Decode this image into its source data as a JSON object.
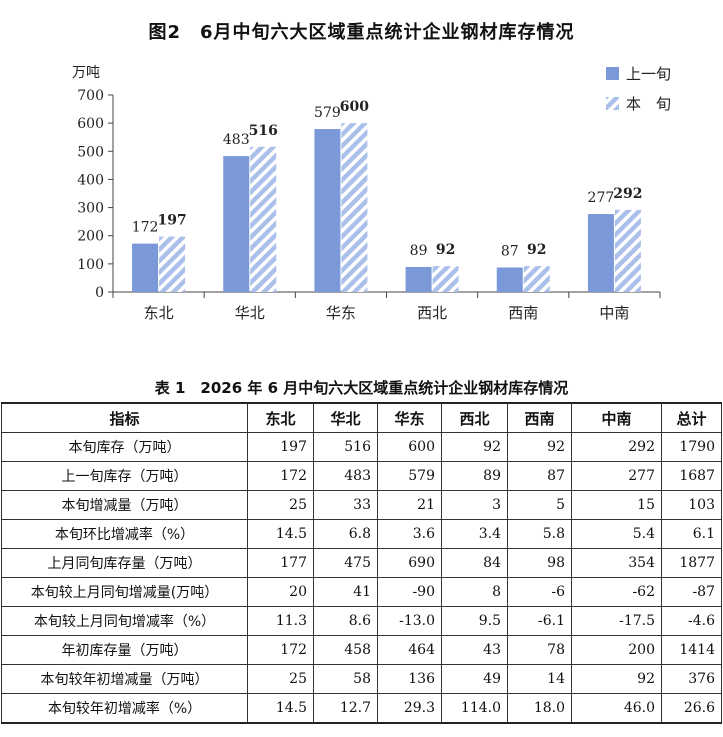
{
  "chart_title": "图2　6月中旬六大区域重点统计企业钢材库存情况",
  "chart_data": {
    "type": "bar",
    "ylabel": "万吨",
    "ylim": [
      0,
      700
    ],
    "yticks": [
      "0",
      "100",
      "200",
      "300",
      "400",
      "500",
      "600",
      "700"
    ],
    "categories": [
      "东北",
      "华北",
      "华东",
      "西北",
      "西南",
      "中南"
    ],
    "series": [
      {
        "name": "上一旬",
        "values": [
          172,
          483,
          579,
          89,
          87,
          277
        ],
        "color": "#7b98d8"
      },
      {
        "name": "本　旬",
        "values": [
          197,
          516,
          600,
          92,
          92,
          292
        ],
        "color": "#aac0ea",
        "pattern": "diagonal-stripes"
      }
    ],
    "legend": "top-right"
  },
  "table_title": "表 1　2026 年 6 月中旬六大区域重点统计企业钢材库存情况",
  "table": {
    "headers": [
      "指标",
      "东北",
      "华北",
      "华东",
      "西北",
      "西南",
      "中南",
      "总计"
    ],
    "rows": [
      [
        "本旬库存（万吨）",
        "197",
        "516",
        "600",
        "92",
        "92",
        "292",
        "1790"
      ],
      [
        "上一旬库存（万吨）",
        "172",
        "483",
        "579",
        "89",
        "87",
        "277",
        "1687"
      ],
      [
        "本旬增减量（万吨）",
        "25",
        "33",
        "21",
        "3",
        "5",
        "15",
        "103"
      ],
      [
        "本旬环比增减率（%）",
        "14.5",
        "6.8",
        "3.6",
        "3.4",
        "5.8",
        "5.4",
        "6.1"
      ],
      [
        "上月同旬库存量（万吨）",
        "177",
        "475",
        "690",
        "84",
        "98",
        "354",
        "1877"
      ],
      [
        "本旬较上月同旬增减量(万吨）",
        "20",
        "41",
        "-90",
        "8",
        "-6",
        "-62",
        "-87"
      ],
      [
        "本旬较上月同旬增减率（%）",
        "11.3",
        "8.6",
        "-13.0",
        "9.5",
        "-6.1",
        "-17.5",
        "-4.6"
      ],
      [
        "年初库存量（万吨）",
        "172",
        "458",
        "464",
        "43",
        "78",
        "200",
        "1414"
      ],
      [
        "本旬较年初增减量（万吨）",
        "25",
        "58",
        "136",
        "49",
        "14",
        "92",
        "376"
      ],
      [
        "本旬较年初增减率（%）",
        "14.5",
        "12.7",
        "29.3",
        "114.0",
        "18.0",
        "46.0",
        "26.6"
      ]
    ]
  }
}
